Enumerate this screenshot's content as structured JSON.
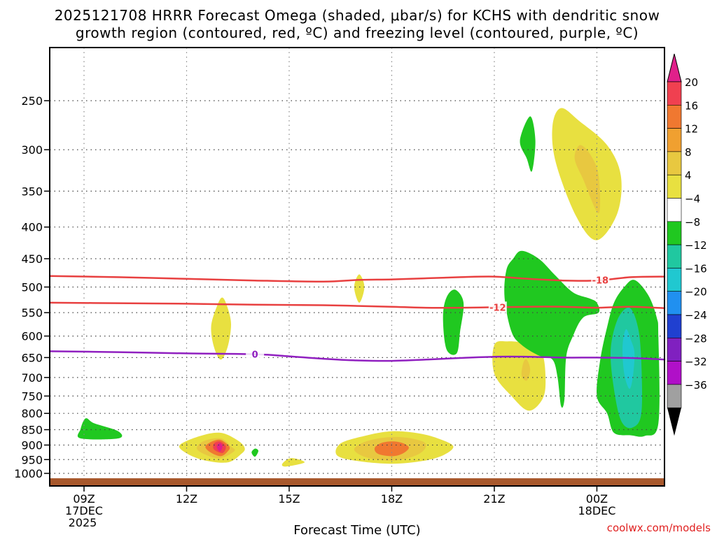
{
  "chart_data": {
    "type": "heatmap",
    "title_line1": "2025121708 HRRR Forecast Omega (shaded, μbar/s) for KCHS with dendritic snow",
    "title_line2": "growth region (contoured, red, ºC) and freezing level (contoured, purple, ºC)",
    "xlabel": "Forecast Time (UTC)",
    "ylabel": "",
    "credit": "coolwx.com/models",
    "x_ticks": [
      {
        "hour": 9,
        "label": "09Z",
        "sub1": "17DEC",
        "sub2": "2025"
      },
      {
        "hour": 12,
        "label": "12Z",
        "sub1": "",
        "sub2": ""
      },
      {
        "hour": 15,
        "label": "15Z",
        "sub1": "",
        "sub2": ""
      },
      {
        "hour": 18,
        "label": "18Z",
        "sub1": "",
        "sub2": ""
      },
      {
        "hour": 21,
        "label": "21Z",
        "sub1": "",
        "sub2": ""
      },
      {
        "hour": 24,
        "label": "00Z",
        "sub1": "18DEC",
        "sub2": ""
      }
    ],
    "x_range_hours": [
      8,
      26
    ],
    "y_ticks": [
      250,
      300,
      350,
      400,
      450,
      500,
      550,
      600,
      650,
      700,
      750,
      800,
      850,
      900,
      950,
      1000
    ],
    "y_range_hpa": [
      1030,
      200
    ],
    "ground_pressure_hpa": 1013,
    "colorbar": {
      "levels": [
        "20",
        "16",
        "12",
        "8",
        "4",
        "−4",
        "−8",
        "−12",
        "−16",
        "−20",
        "−24",
        "−28",
        "−32",
        "−36"
      ],
      "bins": [
        {
          "color": "#f04050"
        },
        {
          "color": "#f07830"
        },
        {
          "color": "#f0a030"
        },
        {
          "color": "#e8c840"
        },
        {
          "color": "#e8e040"
        },
        {
          "color": "#ffffff"
        },
        {
          "color": "#20c820"
        },
        {
          "color": "#20c8a0"
        },
        {
          "color": "#20c8d0"
        },
        {
          "color": "#2090f0"
        },
        {
          "color": "#2040d0"
        },
        {
          "color": "#8020c0"
        },
        {
          "color": "#b010c8"
        },
        {
          "color": "#a0a0a0"
        }
      ],
      "top_arrow_color": "#e0208a",
      "bottom_arrow_color": "#000000"
    },
    "contours": [
      {
        "label": "-18",
        "color": "#e84040",
        "label_hour": 24.1,
        "points": [
          [
            8,
            480
          ],
          [
            10,
            482
          ],
          [
            12,
            485
          ],
          [
            14,
            488
          ],
          [
            16,
            490
          ],
          [
            17,
            487
          ],
          [
            18,
            486
          ],
          [
            19,
            484
          ],
          [
            20,
            482
          ],
          [
            21,
            481
          ],
          [
            22,
            485
          ],
          [
            23,
            488
          ],
          [
            24,
            488
          ],
          [
            25,
            482
          ],
          [
            26,
            481
          ]
        ]
      },
      {
        "label": "-12",
        "color": "#e84040",
        "label_hour": 21.1,
        "points": [
          [
            8,
            530
          ],
          [
            10,
            531
          ],
          [
            12,
            532
          ],
          [
            14,
            534
          ],
          [
            16,
            535
          ],
          [
            18,
            538
          ],
          [
            19,
            540
          ],
          [
            20,
            540
          ],
          [
            21,
            539
          ],
          [
            22,
            538
          ],
          [
            23,
            538
          ],
          [
            24,
            540
          ],
          [
            25,
            538
          ],
          [
            26,
            541
          ]
        ]
      },
      {
        "label": "0",
        "color": "#9020c0",
        "label_hour": 14,
        "points": [
          [
            8,
            635
          ],
          [
            10,
            637
          ],
          [
            12,
            640
          ],
          [
            14,
            642
          ],
          [
            15,
            647
          ],
          [
            16,
            653
          ],
          [
            17,
            657
          ],
          [
            18,
            658
          ],
          [
            19,
            655
          ],
          [
            20,
            651
          ],
          [
            21,
            648
          ],
          [
            22,
            648
          ],
          [
            23,
            650
          ],
          [
            24,
            650
          ],
          [
            25,
            651
          ],
          [
            26,
            655
          ]
        ]
      }
    ],
    "regions": [
      {
        "value": 4,
        "color": "#e8e040",
        "points": [
          [
            13.7,
            910
          ],
          [
            13.6,
            930
          ],
          [
            13.2,
            960
          ],
          [
            12.5,
            952
          ],
          [
            12.0,
            928
          ],
          [
            11.8,
            900
          ],
          [
            12.4,
            870
          ],
          [
            13.0,
            860
          ],
          [
            13.5,
            885
          ]
        ]
      },
      {
        "value": 8,
        "color": "#e8c840",
        "points": [
          [
            13.3,
            905
          ],
          [
            13.4,
            920
          ],
          [
            13.0,
            945
          ],
          [
            12.6,
            935
          ],
          [
            12.3,
            912
          ],
          [
            12.5,
            887
          ],
          [
            13.0,
            878
          ]
        ]
      },
      {
        "value": 12,
        "color": "#f07830",
        "points": [
          [
            13.25,
            905
          ],
          [
            13.2,
            922
          ],
          [
            13.0,
            938
          ],
          [
            12.7,
            925
          ],
          [
            12.55,
            905
          ],
          [
            12.75,
            888
          ],
          [
            13.0,
            883
          ]
        ]
      },
      {
        "value": 16,
        "color": "#f04050",
        "points": [
          [
            13.15,
            905
          ],
          [
            13.05,
            927
          ],
          [
            12.8,
            915
          ],
          [
            12.8,
            895
          ],
          [
            12.97,
            888
          ]
        ]
      },
      {
        "value": 20,
        "color": "#e0208a",
        "points": [
          [
            13.05,
            905
          ],
          [
            12.97,
            922
          ],
          [
            12.88,
            905
          ],
          [
            12.97,
            893
          ]
        ]
      },
      {
        "value": 4,
        "color": "#e8e040",
        "points": [
          [
            19.8,
            905
          ],
          [
            19.5,
            935
          ],
          [
            18.9,
            955
          ],
          [
            18.0,
            965
          ],
          [
            17.0,
            955
          ],
          [
            16.4,
            935
          ],
          [
            16.5,
            895
          ],
          [
            17.2,
            870
          ],
          [
            18.0,
            855
          ],
          [
            18.8,
            862
          ],
          [
            19.4,
            880
          ]
        ]
      },
      {
        "value": 8,
        "color": "#e8c840",
        "points": [
          [
            19.0,
            905
          ],
          [
            18.8,
            930
          ],
          [
            18.3,
            950
          ],
          [
            17.8,
            953
          ],
          [
            17.2,
            940
          ],
          [
            16.9,
            915
          ],
          [
            17.2,
            890
          ],
          [
            17.8,
            875
          ],
          [
            18.4,
            875
          ],
          [
            18.9,
            888
          ]
        ]
      },
      {
        "value": 12,
        "color": "#f07830",
        "points": [
          [
            18.5,
            910
          ],
          [
            18.3,
            930
          ],
          [
            18.0,
            938
          ],
          [
            17.6,
            930
          ],
          [
            17.5,
            910
          ],
          [
            17.7,
            893
          ],
          [
            18.05,
            888
          ],
          [
            18.35,
            895
          ]
        ]
      },
      {
        "value": 4,
        "color": "#e8e040",
        "points": [
          [
            13.3,
            575
          ],
          [
            13.2,
            625
          ],
          [
            13.0,
            655
          ],
          [
            12.8,
            625
          ],
          [
            12.72,
            578
          ],
          [
            12.9,
            535
          ],
          [
            13.05,
            520
          ],
          [
            13.2,
            540
          ]
        ]
      },
      {
        "value": 4,
        "color": "#e8e040",
        "points": [
          [
            17.2,
            500
          ],
          [
            17.05,
            530
          ],
          [
            16.9,
            500
          ],
          [
            17.05,
            477
          ]
        ]
      },
      {
        "value": 4,
        "color": "#e8e040",
        "points": [
          [
            15.45,
            960
          ],
          [
            14.9,
            975
          ],
          [
            14.8,
            965
          ],
          [
            15.05,
            945
          ]
        ]
      },
      {
        "value": 4,
        "color": "#e8e040",
        "points": [
          [
            22.5,
            710
          ],
          [
            22.4,
            760
          ],
          [
            22.0,
            792
          ],
          [
            21.5,
            750
          ],
          [
            21.0,
            690
          ],
          [
            21.0,
            620
          ],
          [
            21.4,
            612
          ],
          [
            22.0,
            618
          ],
          [
            22.4,
            640
          ]
        ]
      },
      {
        "value": 8,
        "color": "#e8c840",
        "points": [
          [
            22.05,
            680
          ],
          [
            21.95,
            708
          ],
          [
            21.8,
            695
          ],
          [
            21.85,
            662
          ],
          [
            21.95,
            655
          ]
        ]
      },
      {
        "value": 4,
        "color": "#e8e040",
        "points": [
          [
            24.7,
            330
          ],
          [
            24.6,
            380
          ],
          [
            24.0,
            420
          ],
          [
            23.4,
            385
          ],
          [
            22.8,
            315
          ],
          [
            22.7,
            275
          ],
          [
            22.95,
            257
          ],
          [
            23.5,
            270
          ],
          [
            24.3,
            295
          ]
        ]
      },
      {
        "value": 8,
        "color": "#e8c840",
        "points": [
          [
            24.05,
            330
          ],
          [
            24.05,
            380
          ],
          [
            23.6,
            335
          ],
          [
            23.35,
            310
          ],
          [
            23.5,
            295
          ],
          [
            23.8,
            305
          ]
        ]
      },
      {
        "value": -4,
        "color": "#20c820",
        "points": [
          [
            10.0,
            855
          ],
          [
            10.0,
            878
          ],
          [
            8.9,
            878
          ],
          [
            8.9,
            848
          ],
          [
            9.05,
            815
          ],
          [
            9.3,
            830
          ]
        ]
      },
      {
        "value": -4,
        "color": "#20c820",
        "points": [
          [
            14.1,
            920
          ],
          [
            14.0,
            940
          ],
          [
            13.9,
            925
          ],
          [
            14.0,
            912
          ]
        ]
      },
      {
        "value": -4,
        "color": "#20c820",
        "points": [
          [
            20.1,
            530
          ],
          [
            20.0,
            590
          ],
          [
            19.9,
            640
          ],
          [
            19.6,
            630
          ],
          [
            19.5,
            560
          ],
          [
            19.6,
            520
          ],
          [
            19.85,
            505
          ]
        ]
      },
      {
        "value": -4,
        "color": "#20c820",
        "points": [
          [
            22.2,
            290
          ],
          [
            22.1,
            325
          ],
          [
            21.95,
            310
          ],
          [
            21.75,
            290
          ],
          [
            22.05,
            265
          ]
        ]
      },
      {
        "value": -4,
        "color": "#20c820",
        "points": [
          [
            24.0,
            530
          ],
          [
            24.05,
            550
          ],
          [
            23.6,
            560
          ],
          [
            23.3,
            600
          ],
          [
            23.1,
            650
          ],
          [
            23.05,
            760
          ],
          [
            22.95,
            778
          ],
          [
            22.85,
            700
          ],
          [
            22.7,
            655
          ],
          [
            22.3,
            645
          ],
          [
            21.8,
            620
          ],
          [
            21.5,
            590
          ],
          [
            21.3,
            520
          ],
          [
            21.35,
            470
          ],
          [
            21.55,
            450
          ],
          [
            21.8,
            437
          ],
          [
            22.3,
            450
          ],
          [
            22.8,
            480
          ],
          [
            23.3,
            510
          ],
          [
            23.8,
            522
          ]
        ]
      },
      {
        "value": -4,
        "color": "#20c820",
        "points": [
          [
            25.8,
            600
          ],
          [
            25.8,
            830
          ],
          [
            25.4,
            870
          ],
          [
            25.0,
            868
          ],
          [
            24.5,
            860
          ],
          [
            24.3,
            800
          ],
          [
            24.0,
            750
          ],
          [
            24.1,
            655
          ],
          [
            24.3,
            580
          ],
          [
            24.5,
            530
          ],
          [
            24.8,
            500
          ],
          [
            25.1,
            487
          ],
          [
            25.5,
            515
          ],
          [
            25.75,
            560
          ]
        ]
      },
      {
        "value": -8,
        "color": "#20c8a0",
        "points": [
          [
            25.3,
            660
          ],
          [
            25.3,
            800
          ],
          [
            25.05,
            843
          ],
          [
            24.75,
            830
          ],
          [
            24.55,
            760
          ],
          [
            24.4,
            640
          ],
          [
            24.6,
            565
          ],
          [
            24.95,
            540
          ],
          [
            25.2,
            580
          ]
        ]
      },
      {
        "value": -12,
        "color": "#20c8d0",
        "points": [
          [
            25.1,
            640
          ],
          [
            25.05,
            700
          ],
          [
            24.95,
            730
          ],
          [
            24.8,
            690
          ],
          [
            24.75,
            625
          ],
          [
            24.85,
            585
          ],
          [
            25.0,
            610
          ]
        ]
      }
    ]
  }
}
